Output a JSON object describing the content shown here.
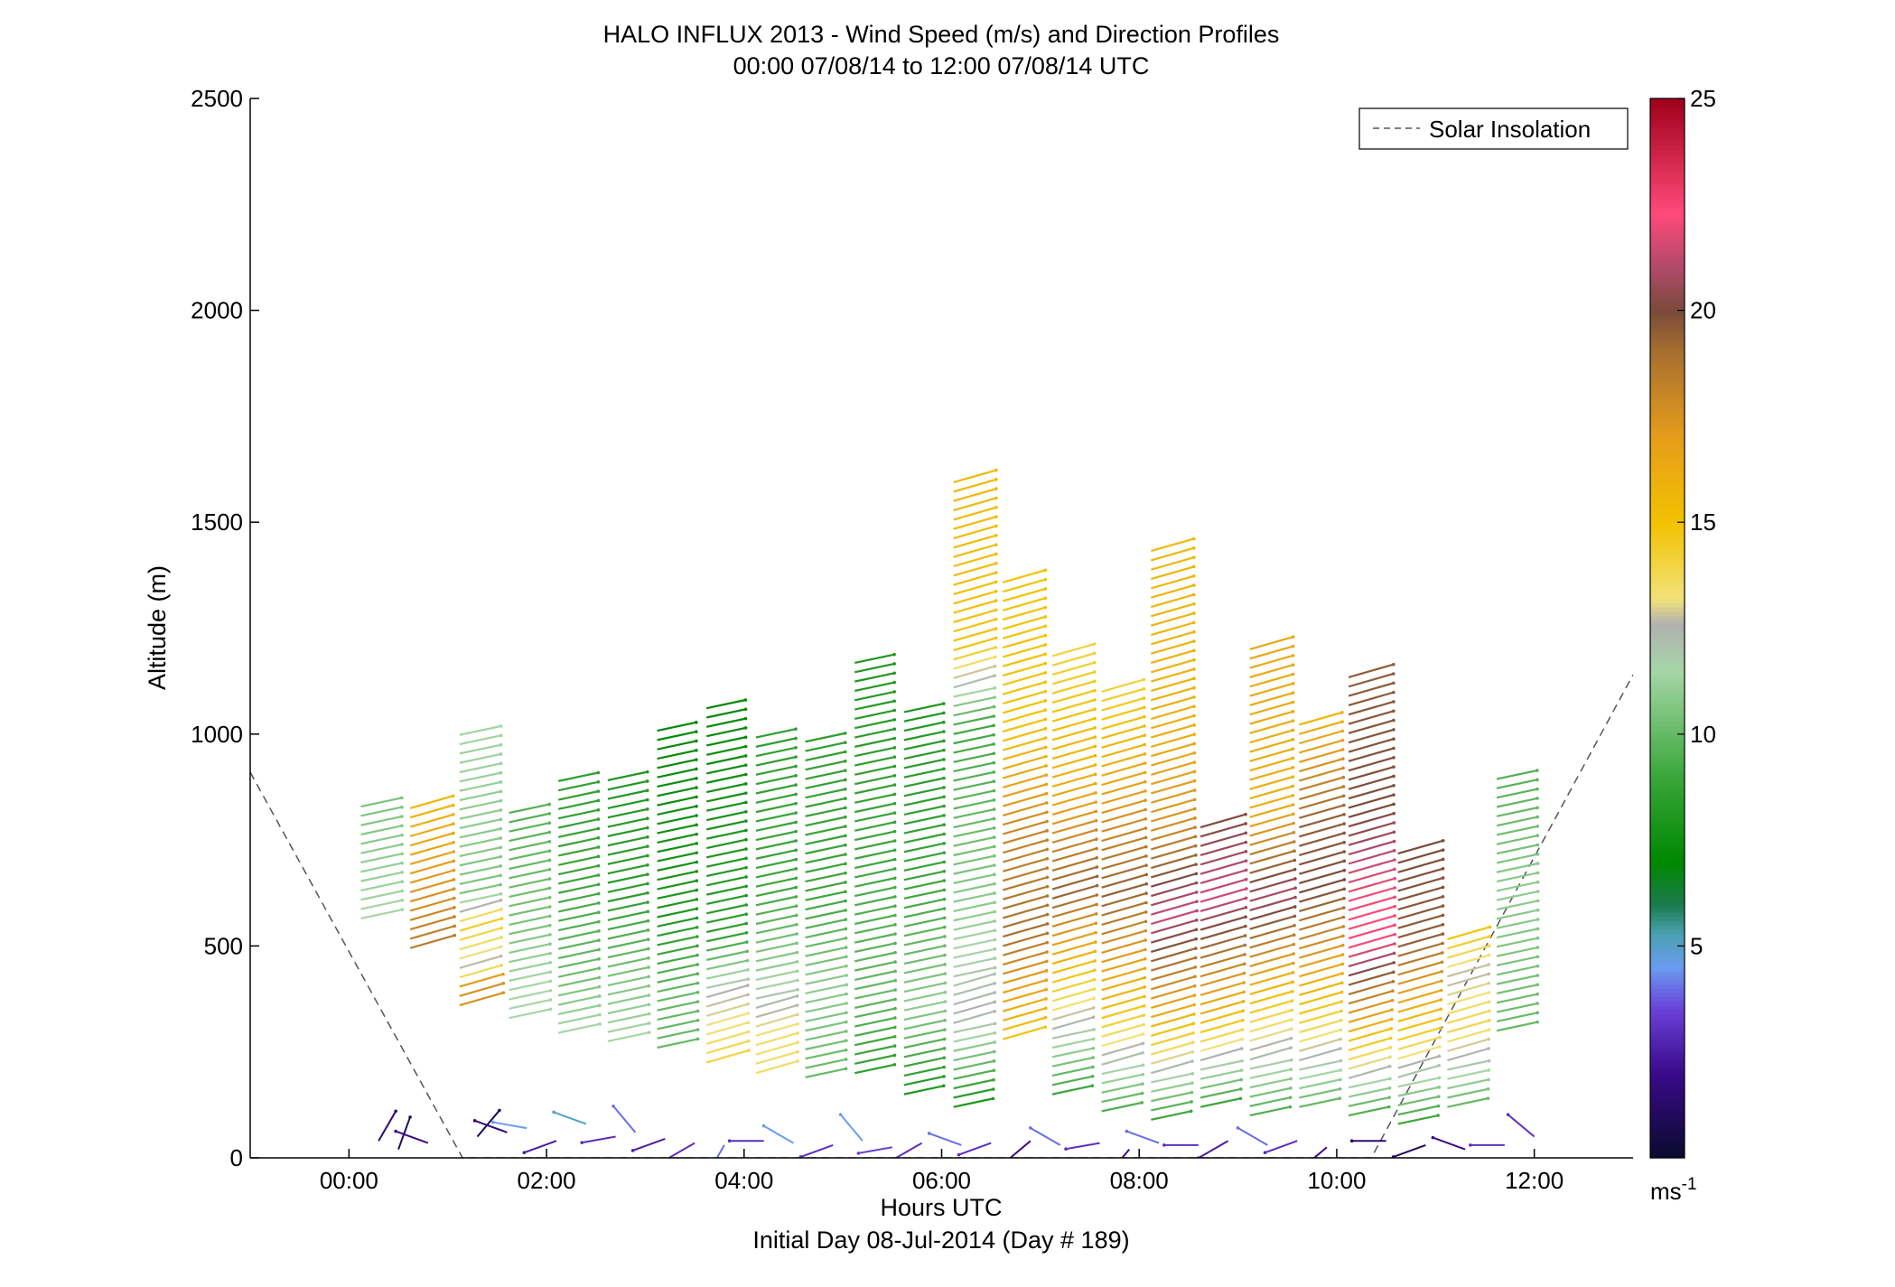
{
  "chart_data": {
    "type": "wind_profile",
    "title": "HALO INFLUX 2013 - Wind Speed (m/s) and Direction Profiles",
    "subtitle": "00:00 07/08/14 to 12:00 07/08/14  UTC",
    "xlabel": "Hours UTC",
    "xlabel2": "Initial Day 08-Jul-2014 (Day # 189)",
    "ylabel": "Altitude (m)",
    "xlim": [
      -1.0,
      13.0
    ],
    "ylim": [
      0,
      2500
    ],
    "x_ticks": [
      0,
      2,
      4,
      6,
      8,
      10,
      12
    ],
    "x_tick_labels": [
      "00:00",
      "02:00",
      "04:00",
      "06:00",
      "08:00",
      "10:00",
      "12:00"
    ],
    "y_ticks": [
      0,
      500,
      1000,
      1500,
      2000,
      2500
    ],
    "y_tick_labels": [
      "0",
      "500",
      "1000",
      "1500",
      "2000",
      "2500"
    ],
    "legend": {
      "entries": [
        "Solar Insolation"
      ],
      "placement": "top-right"
    },
    "colorbar": {
      "range": [
        0,
        25
      ],
      "ticks": [
        5,
        10,
        15,
        20,
        25
      ],
      "tick_labels": [
        "5",
        "10",
        "15",
        "20",
        "25"
      ],
      "unit_base": "ms",
      "unit_exp": "-1",
      "stops": [
        {
          "v": 0,
          "c": "#0a0a2e"
        },
        {
          "v": 2,
          "c": "#3a0a8a"
        },
        {
          "v": 3.5,
          "c": "#6a40d8"
        },
        {
          "v": 4.5,
          "c": "#6a9cf0"
        },
        {
          "v": 5.3,
          "c": "#4aa0b0"
        },
        {
          "v": 6,
          "c": "#1a7a4a"
        },
        {
          "v": 7,
          "c": "#008800"
        },
        {
          "v": 9,
          "c": "#3aa63a"
        },
        {
          "v": 11.5,
          "c": "#a6d6a6"
        },
        {
          "v": 12.6,
          "c": "#b0b0b0"
        },
        {
          "v": 13.2,
          "c": "#f2e27a"
        },
        {
          "v": 15,
          "c": "#f2c200"
        },
        {
          "v": 17,
          "c": "#e69d1a"
        },
        {
          "v": 19,
          "c": "#a87030"
        },
        {
          "v": 20,
          "c": "#7a4a3a"
        },
        {
          "v": 21,
          "c": "#b04a6a"
        },
        {
          "v": 22.3,
          "c": "#ff4a7a"
        },
        {
          "v": 25,
          "c": "#a0001a"
        }
      ]
    },
    "solar_insolation": [
      {
        "x": -1.0,
        "y": 910
      },
      {
        "x": 1.15,
        "y": 0
      },
      {
        "x": 10.35,
        "y": 0
      },
      {
        "x": 13.0,
        "y": 1140
      }
    ],
    "profiles": [
      {
        "t": 0.12,
        "bins": [
          [
            565,
            11.5
          ],
          [
            830,
            10.5
          ]
        ]
      },
      {
        "t": 0.62,
        "bins": [
          [
            495,
            18.5
          ],
          [
            835,
            15.5
          ]
        ]
      },
      {
        "t": 1.12,
        "bins": [
          [
            360,
            17.5
          ],
          [
            400,
            17.5
          ],
          [
            435,
            12.5
          ],
          [
            540,
            14.5
          ],
          [
            620,
            10.5
          ],
          [
            1015,
            11.5
          ]
        ]
      },
      {
        "t": 1.62,
        "bins": [
          [
            330,
            11.5
          ],
          [
            400,
            11.5
          ],
          [
            535,
            10.5
          ],
          [
            830,
            9.5
          ]
        ]
      },
      {
        "t": 2.12,
        "bins": [
          [
            295,
            11.5
          ],
          [
            440,
            10
          ],
          [
            640,
            9
          ],
          [
            910,
            8.5
          ]
        ]
      },
      {
        "t": 2.62,
        "bins": [
          [
            275,
            11.5
          ],
          [
            420,
            10.5
          ],
          [
            600,
            8.5
          ],
          [
            910,
            8
          ]
        ]
      },
      {
        "t": 3.12,
        "bins": [
          [
            260,
            10
          ],
          [
            380,
            10
          ],
          [
            570,
            8
          ],
          [
            1020,
            7
          ]
        ]
      },
      {
        "t": 3.62,
        "bins": [
          [
            225,
            14
          ],
          [
            375,
            12.6
          ],
          [
            520,
            8.5
          ],
          [
            1065,
            7
          ]
        ]
      },
      {
        "t": 4.12,
        "bins": [
          [
            200,
            13.5
          ],
          [
            280,
            13.5
          ],
          [
            440,
            11
          ],
          [
            620,
            9
          ],
          [
            1005,
            8.5
          ]
        ]
      },
      {
        "t": 4.62,
        "bins": [
          [
            190,
            10
          ],
          [
            400,
            11
          ],
          [
            600,
            9
          ],
          [
            1000,
            8.5
          ]
        ]
      },
      {
        "t": 5.12,
        "bins": [
          [
            200,
            8.5
          ],
          [
            380,
            10
          ],
          [
            700,
            9
          ],
          [
            1170,
            8
          ]
        ]
      },
      {
        "t": 5.62,
        "bins": [
          [
            150,
            8
          ],
          [
            350,
            11
          ],
          [
            620,
            9
          ],
          [
            1065,
            8
          ]
        ]
      },
      {
        "t": 6.12,
        "bins": [
          [
            120,
            8
          ],
          [
            330,
            12.6
          ],
          [
            560,
            11
          ],
          [
            790,
            10
          ],
          [
            1010,
            9
          ],
          [
            1200,
            15
          ],
          [
            1600,
            15.5
          ]
        ]
      },
      {
        "t": 6.62,
        "bins": [
          [
            280,
            15
          ],
          [
            520,
            19
          ],
          [
            760,
            18
          ],
          [
            1000,
            15
          ],
          [
            1360,
            15
          ]
        ]
      },
      {
        "t": 7.12,
        "bins": [
          [
            150,
            9
          ],
          [
            380,
            14
          ],
          [
            620,
            19.5
          ],
          [
            880,
            16
          ],
          [
            1195,
            14
          ]
        ]
      },
      {
        "t": 7.62,
        "bins": [
          [
            110,
            9.5
          ],
          [
            360,
            15.5
          ],
          [
            620,
            19.5
          ],
          [
            880,
            16.5
          ],
          [
            1120,
            14
          ]
        ]
      },
      {
        "t": 8.12,
        "bins": [
          [
            90,
            9
          ],
          [
            320,
            16
          ],
          [
            560,
            21.5
          ],
          [
            780,
            17.5
          ],
          [
            1020,
            16
          ],
          [
            1440,
            15.5
          ]
        ]
      },
      {
        "t": 8.62,
        "bins": [
          [
            120,
            9
          ],
          [
            340,
            16
          ],
          [
            600,
            21.5
          ],
          [
            800,
            20
          ]
        ]
      },
      {
        "t": 9.12,
        "bins": [
          [
            100,
            9.5
          ],
          [
            320,
            14
          ],
          [
            600,
            21
          ],
          [
            820,
            16
          ],
          [
            1220,
            16.5
          ]
        ]
      },
      {
        "t": 9.62,
        "bins": [
          [
            120,
            10
          ],
          [
            350,
            15
          ],
          [
            620,
            20
          ],
          [
            780,
            19.5
          ],
          [
            1040,
            15.5
          ]
        ]
      },
      {
        "t": 10.12,
        "bins": [
          [
            100,
            9.5
          ],
          [
            300,
            16
          ],
          [
            500,
            22.5
          ],
          [
            620,
            22
          ],
          [
            800,
            20
          ],
          [
            1150,
            19.5
          ]
        ]
      },
      {
        "t": 10.62,
        "bins": [
          [
            80,
            9
          ],
          [
            280,
            14.5
          ],
          [
            500,
            19.5
          ],
          [
            720,
            20
          ]
        ]
      },
      {
        "t": 11.12,
        "bins": [
          [
            120,
            10
          ],
          [
            300,
            14
          ],
          [
            420,
            12.6
          ],
          [
            520,
            15
          ]
        ]
      },
      {
        "t": 11.62,
        "bins": [
          [
            300,
            10
          ],
          [
            620,
            11
          ],
          [
            895,
            9.5
          ]
        ]
      }
    ],
    "surface_barbs": [
      {
        "t": 0.3,
        "y": 40,
        "sp": 1.5,
        "dir": -60
      },
      {
        "t": 0.5,
        "y": 20,
        "sp": 1,
        "dir": -70
      },
      {
        "t": 0.8,
        "y": 35,
        "sp": 2,
        "dir": 200
      },
      {
        "t": 1.3,
        "y": 50,
        "sp": 1,
        "dir": -50
      },
      {
        "t": 1.6,
        "y": 60,
        "sp": 1.5,
        "dir": 200
      },
      {
        "t": 1.8,
        "y": 70,
        "sp": 4.5,
        "dir": 190
      },
      {
        "t": 2.1,
        "y": 40,
        "sp": 2.5,
        "dir": 160
      },
      {
        "t": 2.4,
        "y": 80,
        "sp": 5,
        "dir": 200
      },
      {
        "t": 2.7,
        "y": 50,
        "sp": 3,
        "dir": 170
      },
      {
        "t": 2.9,
        "y": 60,
        "sp": 4,
        "dir": 230
      },
      {
        "t": 3.2,
        "y": 45,
        "sp": 2.5,
        "dir": 160
      },
      {
        "t": 3.5,
        "y": 35,
        "sp": 3,
        "dir": 150
      },
      {
        "t": 3.8,
        "y": 30,
        "sp": 4,
        "dir": 120
      },
      {
        "t": 4.2,
        "y": 40,
        "sp": 3,
        "dir": 180
      },
      {
        "t": 4.5,
        "y": 35,
        "sp": 4.5,
        "dir": 210
      },
      {
        "t": 4.9,
        "y": 30,
        "sp": 3,
        "dir": 160
      },
      {
        "t": 5.2,
        "y": 40,
        "sp": 4.5,
        "dir": 230
      },
      {
        "t": 5.5,
        "y": 25,
        "sp": 3.5,
        "dir": 170
      },
      {
        "t": 5.8,
        "y": 35,
        "sp": 3,
        "dir": 150
      },
      {
        "t": 6.2,
        "y": 30,
        "sp": 4,
        "dir": 200
      },
      {
        "t": 6.5,
        "y": 35,
        "sp": 3,
        "dir": 160
      },
      {
        "t": 6.9,
        "y": 40,
        "sp": 2,
        "dir": 140
      },
      {
        "t": 7.2,
        "y": 30,
        "sp": 4,
        "dir": 210
      },
      {
        "t": 7.6,
        "y": 35,
        "sp": 3,
        "dir": 170
      },
      {
        "t": 7.9,
        "y": 20,
        "sp": 2,
        "dir": 130
      },
      {
        "t": 8.2,
        "y": 35,
        "sp": 4,
        "dir": 200
      },
      {
        "t": 8.6,
        "y": 30,
        "sp": 3,
        "dir": 180
      },
      {
        "t": 8.9,
        "y": 40,
        "sp": 2.5,
        "dir": 150
      },
      {
        "t": 9.3,
        "y": 30,
        "sp": 4,
        "dir": 210
      },
      {
        "t": 9.6,
        "y": 40,
        "sp": 3,
        "dir": 160
      },
      {
        "t": 9.9,
        "y": 25,
        "sp": 2,
        "dir": 140
      },
      {
        "t": 10.5,
        "y": 40,
        "sp": 1.5,
        "dir": 180
      },
      {
        "t": 10.9,
        "y": 30,
        "sp": 1,
        "dir": 160
      },
      {
        "t": 11.3,
        "y": 20,
        "sp": 2,
        "dir": 200
      },
      {
        "t": 11.7,
        "y": 30,
        "sp": 3,
        "dir": 180
      },
      {
        "t": 12.0,
        "y": 50,
        "sp": 3,
        "dir": 220
      }
    ]
  }
}
